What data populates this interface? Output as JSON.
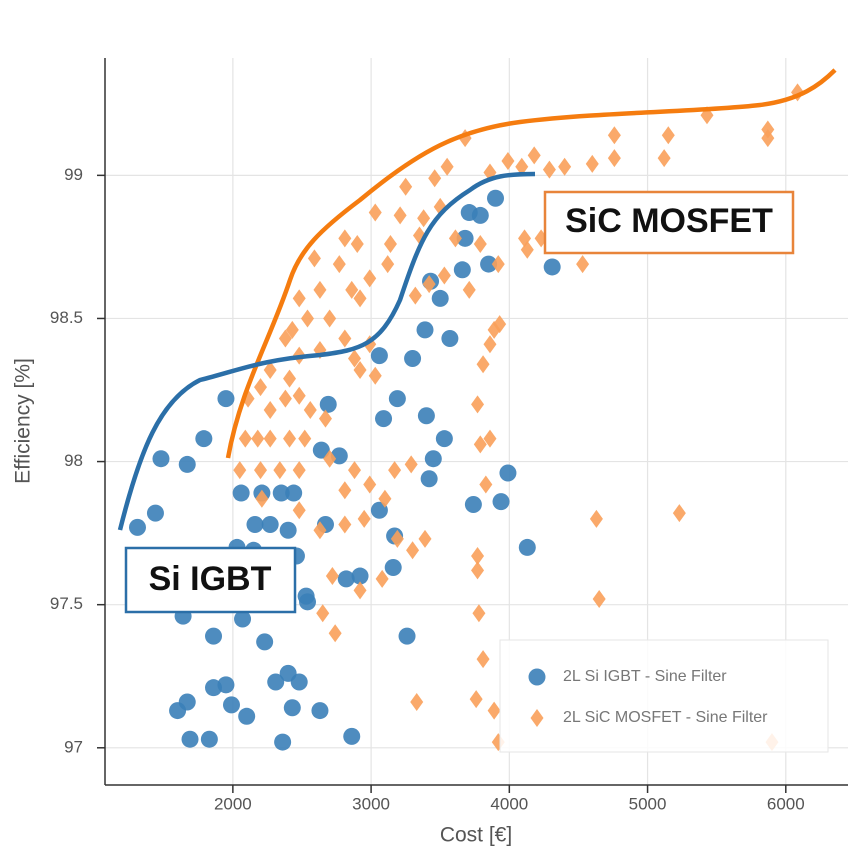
{
  "chart_data": {
    "type": "scatter",
    "x_label": "Cost [€]",
    "y_label": "Efficiency [%]",
    "annotations": [
      "SiC MOSFET",
      "Si IGBT"
    ],
    "xlim": [
      1075,
      6450
    ],
    "ylim": [
      96.87,
      99.41
    ],
    "xticks": [
      2000,
      3000,
      4000,
      5000,
      6000
    ],
    "yticks": [
      97,
      97.5,
      98,
      98.5,
      99
    ],
    "grid": true,
    "legend": "lower right",
    "series": [
      {
        "name": "2L Si IGBT - Sine Filter",
        "color": "#3b7fb8",
        "marker": "circle",
        "x": [
          1310,
          1440,
          1480,
          1670,
          1950,
          1790,
          2060,
          2030,
          2210,
          2350,
          2440,
          2160,
          2270,
          2400,
          2460,
          2530,
          2150,
          2070,
          1860,
          1640,
          1600,
          1670,
          1860,
          1950,
          1990,
          2100,
          2230,
          2310,
          2400,
          2480,
          2430,
          2630,
          2360,
          1690,
          1830,
          2860,
          2820,
          2540,
          2670,
          2640,
          2690,
          2770,
          3060,
          3090,
          3060,
          3170,
          3160,
          3190,
          3300,
          3390,
          3400,
          3430,
          3500,
          3450,
          3530,
          3570,
          3660,
          3680,
          3710,
          3790,
          3900,
          3850,
          3740,
          3940,
          3990,
          4130,
          4310,
          3420,
          2920,
          3260
        ],
        "values": [
          97.77,
          97.82,
          98.01,
          97.99,
          98.22,
          98.08,
          97.89,
          97.7,
          97.89,
          97.89,
          97.89,
          97.78,
          97.78,
          97.76,
          97.67,
          97.53,
          97.69,
          97.45,
          97.39,
          97.46,
          97.13,
          97.16,
          97.21,
          97.22,
          97.15,
          97.11,
          97.37,
          97.23,
          97.26,
          97.23,
          97.14,
          97.13,
          97.02,
          97.03,
          97.03,
          97.04,
          97.59,
          97.51,
          97.78,
          98.04,
          98.2,
          98.02,
          98.37,
          98.15,
          97.83,
          97.74,
          97.63,
          98.22,
          98.36,
          98.46,
          98.16,
          98.63,
          98.57,
          98.01,
          98.08,
          98.43,
          98.67,
          98.78,
          98.87,
          98.86,
          98.92,
          98.69,
          97.85,
          97.86,
          97.96,
          97.7,
          98.68,
          97.94,
          97.6,
          97.39
        ]
      },
      {
        "name": "2L SiC MOSFET - Sine Filter",
        "color": "#f9a05a",
        "marker": "diamond",
        "x": [
          6085,
          5430,
          5870,
          5870,
          5150,
          5120,
          4760,
          4760,
          4600,
          4400,
          4290,
          4180,
          4090,
          3990,
          3860,
          3680,
          3550,
          3460,
          3250,
          3030,
          3210,
          3500,
          3380,
          3350,
          3610,
          3790,
          4110,
          4130,
          4230,
          4530,
          3920,
          3710,
          3530,
          3420,
          3320,
          3140,
          3120,
          2990,
          2920,
          2860,
          2900,
          2810,
          2770,
          2590,
          2630,
          2480,
          2700,
          2540,
          2430,
          2380,
          2270,
          2480,
          2630,
          2810,
          2880,
          2920,
          3030,
          2410,
          2200,
          2110,
          2270,
          2380,
          2480,
          2560,
          2670,
          2520,
          2410,
          2270,
          2180,
          2090,
          2050,
          2200,
          2340,
          2480,
          2700,
          2880,
          2810,
          2990,
          3170,
          3290,
          2210,
          2480,
          2630,
          2810,
          2950,
          3100,
          3190,
          3300,
          3390,
          2720,
          2920,
          3080,
          2650,
          2740,
          3770,
          3770,
          3770,
          3780,
          3810,
          3760,
          3890,
          3920,
          3330,
          3830,
          3860,
          3790,
          3860,
          3890,
          3930,
          3810,
          5230,
          4630,
          4650,
          5900,
          2990
        ],
        "values": [
          99.29,
          99.21,
          99.16,
          99.13,
          99.14,
          99.06,
          99.14,
          99.06,
          99.04,
          99.03,
          99.02,
          99.07,
          99.03,
          99.05,
          99.01,
          99.13,
          99.03,
          98.99,
          98.96,
          98.87,
          98.86,
          98.89,
          98.85,
          98.79,
          98.78,
          98.76,
          98.78,
          98.74,
          98.78,
          98.69,
          98.69,
          98.6,
          98.65,
          98.62,
          98.58,
          98.76,
          98.69,
          98.64,
          98.57,
          98.6,
          98.76,
          98.78,
          98.69,
          98.71,
          98.6,
          98.57,
          98.5,
          98.5,
          98.46,
          98.43,
          98.32,
          98.37,
          98.39,
          98.43,
          98.36,
          98.32,
          98.3,
          98.29,
          98.26,
          98.22,
          98.18,
          98.22,
          98.23,
          98.18,
          98.15,
          98.08,
          98.08,
          98.08,
          98.08,
          98.08,
          97.97,
          97.97,
          97.97,
          97.97,
          98.01,
          97.97,
          97.9,
          97.92,
          97.97,
          97.99,
          97.87,
          97.83,
          97.76,
          97.78,
          97.8,
          97.87,
          97.73,
          97.69,
          97.73,
          97.6,
          97.55,
          97.59,
          97.47,
          97.4,
          98.2,
          97.67,
          97.62,
          97.47,
          97.31,
          97.17,
          97.13,
          97.02,
          97.16,
          97.92,
          98.08,
          98.06,
          98.41,
          98.46,
          98.48,
          98.34,
          97.82,
          97.8,
          97.52,
          97.02,
          98.41
        ]
      }
    ]
  }
}
